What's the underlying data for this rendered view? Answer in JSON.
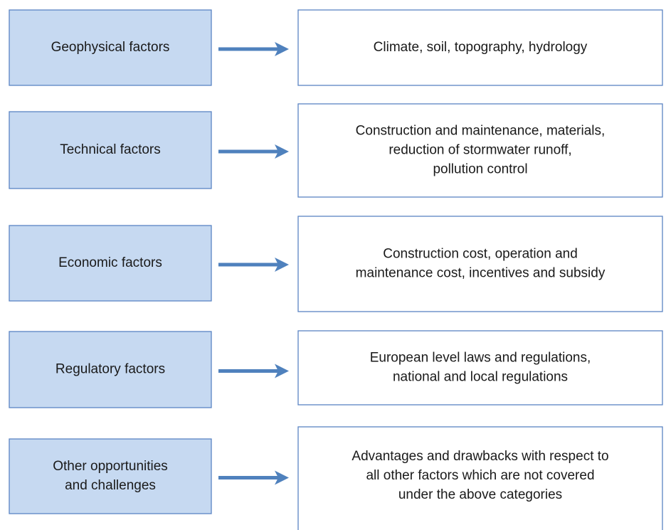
{
  "rows": [
    {
      "factor": [
        "Geophysical factors"
      ],
      "description": [
        "Climate, soil, topography, hydrology"
      ]
    },
    {
      "factor": [
        "Technical factors"
      ],
      "description": [
        "Construction and maintenance, materials,",
        "reduction of stormwater runoff,",
        "pollution control"
      ]
    },
    {
      "factor": [
        "Economic factors"
      ],
      "description": [
        "Construction cost, operation and",
        "maintenance cost, incentives and subsidy"
      ]
    },
    {
      "factor": [
        "Regulatory factors"
      ],
      "description": [
        "European level laws and regulations,",
        "national and local regulations"
      ]
    },
    {
      "factor": [
        "Other opportunities",
        "and challenges"
      ],
      "description": [
        "Advantages and drawbacks with respect to",
        "all other factors which are not covered",
        "under the above categories"
      ]
    }
  ]
}
